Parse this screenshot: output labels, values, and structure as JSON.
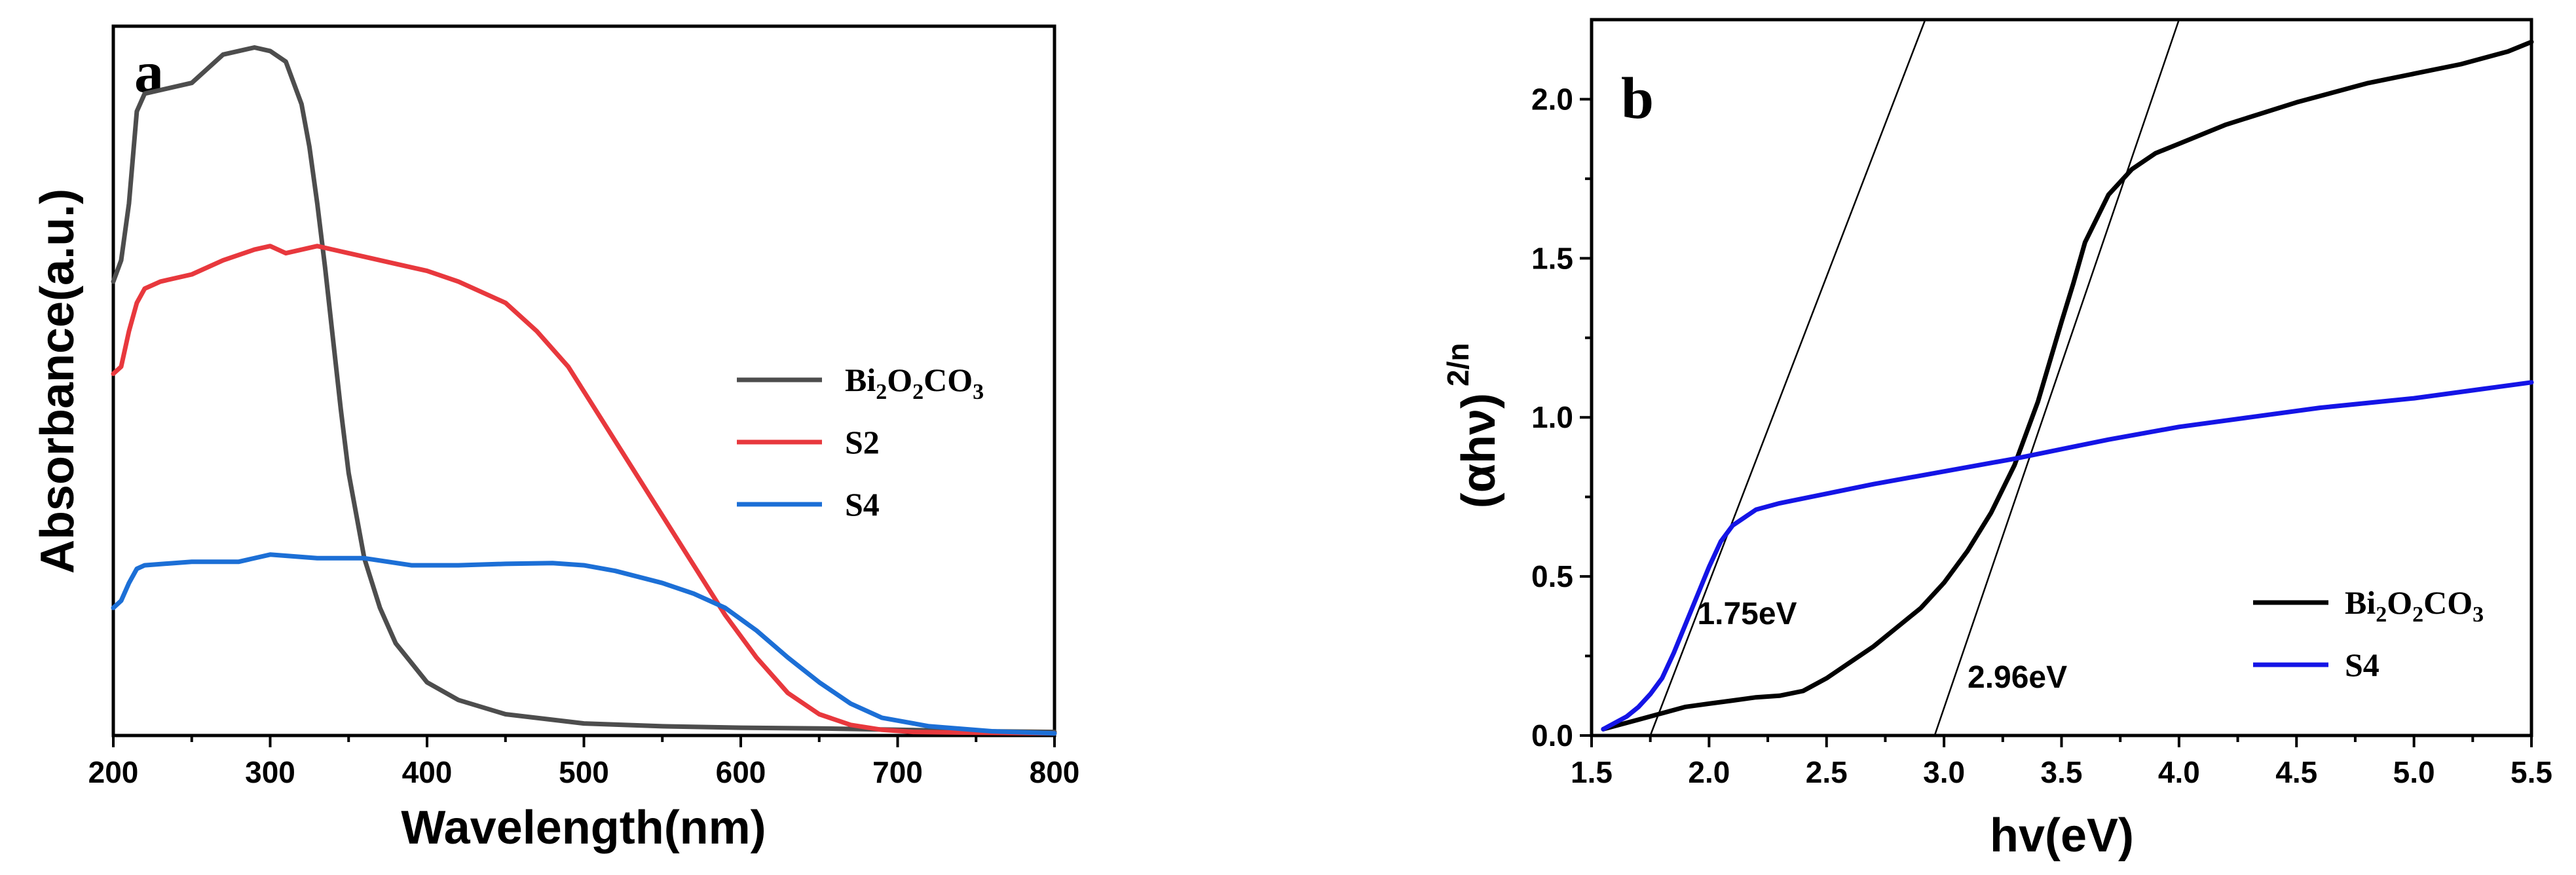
{
  "chart_data": [
    {
      "panel": "a",
      "type": "line",
      "xlabel": "Wavelength(nm)",
      "ylabel": "Absorbance(a.u.)",
      "xlim": [
        200,
        800
      ],
      "ylim": [
        0,
        1
      ],
      "xticks": [
        200,
        300,
        400,
        500,
        600,
        700,
        800
      ],
      "xtick_labels": [
        "200",
        "300",
        "400",
        "500",
        "600",
        "700",
        "800"
      ],
      "yticks_shown": false,
      "legend": "right",
      "series": [
        {
          "name": "Bi2O2CO3",
          "label_parts": [
            {
              "t": "Bi"
            },
            {
              "t": "2",
              "sub": true
            },
            {
              "t": "O"
            },
            {
              "t": "2",
              "sub": true
            },
            {
              "t": "CO"
            },
            {
              "t": "3",
              "sub": true
            }
          ],
          "color": "#4d4d4d",
          "x": [
            200,
            205,
            210,
            215,
            220,
            230,
            250,
            270,
            290,
            300,
            310,
            320,
            325,
            330,
            335,
            340,
            345,
            350,
            360,
            370,
            380,
            400,
            420,
            450,
            500,
            550,
            600,
            650,
            700,
            750,
            800
          ],
          "y": [
            0.64,
            0.67,
            0.75,
            0.88,
            0.905,
            0.91,
            0.92,
            0.96,
            0.97,
            0.965,
            0.95,
            0.89,
            0.83,
            0.75,
            0.66,
            0.56,
            0.46,
            0.37,
            0.25,
            0.18,
            0.13,
            0.075,
            0.05,
            0.03,
            0.017,
            0.013,
            0.011,
            0.01,
            0.008,
            0.006,
            0.005
          ]
        },
        {
          "name": "S2",
          "label_parts": [
            {
              "t": "S2"
            }
          ],
          "color": "#e8383d",
          "x": [
            200,
            205,
            210,
            215,
            220,
            230,
            250,
            270,
            290,
            300,
            310,
            330,
            350,
            380,
            400,
            420,
            450,
            470,
            490,
            510,
            530,
            550,
            570,
            590,
            610,
            630,
            650,
            670,
            690,
            710,
            750,
            800
          ],
          "y": [
            0.51,
            0.52,
            0.57,
            0.61,
            0.63,
            0.64,
            0.65,
            0.67,
            0.685,
            0.69,
            0.68,
            0.69,
            0.68,
            0.665,
            0.655,
            0.64,
            0.61,
            0.57,
            0.52,
            0.45,
            0.38,
            0.31,
            0.24,
            0.17,
            0.11,
            0.06,
            0.03,
            0.015,
            0.008,
            0.005,
            0.004,
            0.003
          ]
        },
        {
          "name": "S4",
          "label_parts": [
            {
              "t": "S4"
            }
          ],
          "color": "#1c6fd6",
          "x": [
            200,
            205,
            210,
            215,
            220,
            250,
            280,
            300,
            330,
            360,
            390,
            420,
            450,
            480,
            500,
            520,
            550,
            570,
            590,
            610,
            630,
            650,
            670,
            690,
            720,
            760,
            800
          ],
          "y": [
            0.18,
            0.19,
            0.215,
            0.235,
            0.24,
            0.245,
            0.245,
            0.255,
            0.25,
            0.25,
            0.24,
            0.24,
            0.242,
            0.243,
            0.24,
            0.232,
            0.215,
            0.2,
            0.18,
            0.148,
            0.11,
            0.075,
            0.045,
            0.025,
            0.013,
            0.006,
            0.003
          ]
        }
      ]
    },
    {
      "panel": "b",
      "type": "line",
      "xlabel": "hv(eV)",
      "ylabel": "(αhν)",
      "ylabel_sup": "2/n",
      "xlim": [
        1.5,
        5.5
      ],
      "ylim": [
        0,
        2.25
      ],
      "xticks": [
        1.5,
        2.0,
        2.5,
        3.0,
        3.5,
        4.0,
        4.5,
        5.0,
        5.5
      ],
      "xtick_labels": [
        "1.5",
        "2.0",
        "2.5",
        "3.0",
        "3.5",
        "4.0",
        "4.5",
        "5.0",
        "5.5"
      ],
      "yticks": [
        0.0,
        0.5,
        1.0,
        1.5,
        2.0
      ],
      "ytick_labels": [
        "0.0",
        "0.5",
        "1.0",
        "1.5",
        "2.0"
      ],
      "legend": "bottom-right",
      "series": [
        {
          "name": "Bi2O2CO3",
          "label_parts": [
            {
              "t": "Bi"
            },
            {
              "t": "2",
              "sub": true
            },
            {
              "t": "O"
            },
            {
              "t": "2",
              "sub": true
            },
            {
              "t": "CO"
            },
            {
              "t": "3",
              "sub": true
            }
          ],
          "color": "#000000",
          "x": [
            1.55,
            1.6,
            1.7,
            1.8,
            1.9,
            2.0,
            2.1,
            2.2,
            2.3,
            2.4,
            2.5,
            2.6,
            2.7,
            2.8,
            2.9,
            3.0,
            3.1,
            3.2,
            3.3,
            3.4,
            3.5,
            3.55,
            3.6,
            3.7,
            3.8,
            3.9,
            4.0,
            4.2,
            4.5,
            4.8,
            5.0,
            5.2,
            5.4,
            5.5
          ],
          "y": [
            0.02,
            0.03,
            0.05,
            0.07,
            0.09,
            0.1,
            0.11,
            0.12,
            0.125,
            0.14,
            0.18,
            0.23,
            0.28,
            0.34,
            0.4,
            0.48,
            0.58,
            0.7,
            0.85,
            1.05,
            1.3,
            1.42,
            1.55,
            1.7,
            1.78,
            1.83,
            1.86,
            1.92,
            1.99,
            2.05,
            2.08,
            2.11,
            2.15,
            2.18
          ]
        },
        {
          "name": "S4",
          "label_parts": [
            {
              "t": "S4"
            }
          ],
          "color": "#1414e6",
          "x": [
            1.55,
            1.6,
            1.65,
            1.7,
            1.75,
            1.8,
            1.85,
            1.9,
            1.95,
            2.0,
            2.05,
            2.1,
            2.2,
            2.3,
            2.5,
            2.7,
            3.0,
            3.3,
            3.5,
            3.7,
            4.0,
            4.3,
            4.6,
            5.0,
            5.3,
            5.5
          ],
          "y": [
            0.02,
            0.04,
            0.06,
            0.09,
            0.13,
            0.18,
            0.26,
            0.35,
            0.44,
            0.53,
            0.61,
            0.66,
            0.71,
            0.73,
            0.76,
            0.79,
            0.83,
            0.87,
            0.9,
            0.93,
            0.97,
            1.0,
            1.03,
            1.06,
            1.09,
            1.11
          ]
        }
      ],
      "fit_lines": [
        {
          "name": "S4 tangent",
          "x1": 1.75,
          "y1": 0.0,
          "x2": 2.92,
          "y2": 2.25
        },
        {
          "name": "Bi2O2CO3 tangent",
          "x1": 2.96,
          "y1": 0.0,
          "x2": 4.0,
          "y2": 2.25
        }
      ],
      "annotations": [
        {
          "text": "1.75eV",
          "x": 1.95,
          "y": 0.35
        },
        {
          "text": "2.96eV",
          "x": 3.1,
          "y": 0.15
        }
      ]
    }
  ]
}
